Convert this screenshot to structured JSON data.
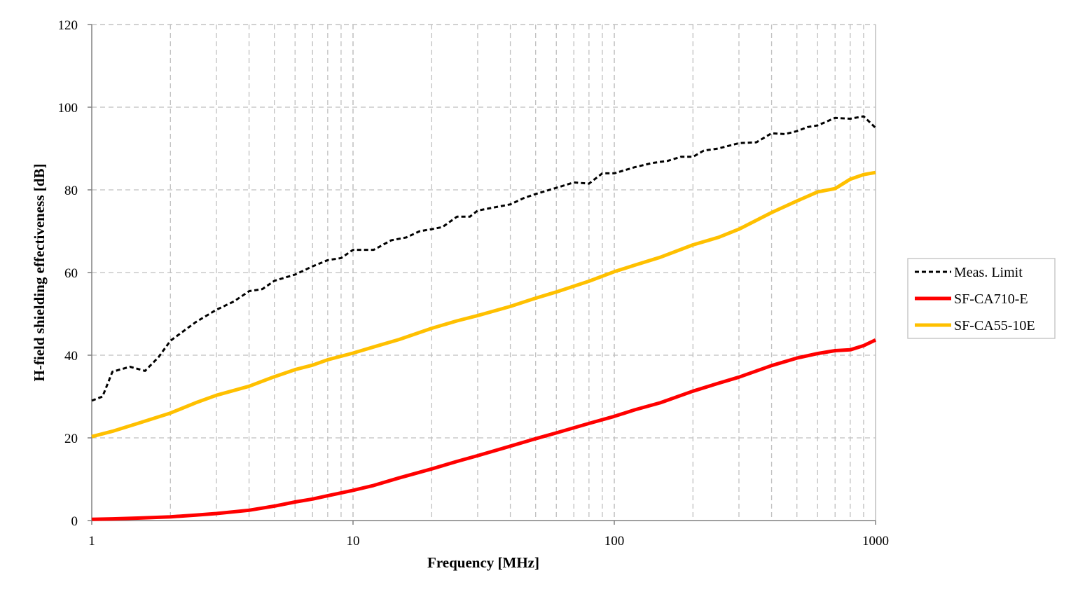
{
  "chart_data": {
    "type": "line",
    "x_scale": "log",
    "xlabel": "Frequency [MHz]",
    "ylabel": "H-field  shielding effectiveness [dB]",
    "xlim": [
      1,
      1000
    ],
    "ylim": [
      0,
      120
    ],
    "x_tick_labels": [
      "1",
      "10",
      "100",
      "1000"
    ],
    "y_tick_labels": [
      "0",
      "20",
      "40",
      "60",
      "80",
      "100",
      "120"
    ],
    "grid": true,
    "legend_position": "right",
    "series": [
      {
        "name": "Meas. Limit",
        "color": "#000000",
        "style": "dashed",
        "x": [
          1,
          1.1,
          1.2,
          1.4,
          1.6,
          1.8,
          2,
          2.5,
          3,
          3.5,
          4,
          4.5,
          5,
          6,
          7,
          8,
          9,
          10,
          12,
          14,
          16,
          18,
          20,
          22,
          25,
          28,
          30,
          35,
          40,
          45,
          50,
          60,
          70,
          80,
          90,
          100,
          120,
          140,
          160,
          180,
          200,
          220,
          250,
          300,
          350,
          400,
          450,
          500,
          550,
          600,
          700,
          800,
          900,
          1000
        ],
        "y": [
          29,
          30,
          36,
          37.2,
          36.2,
          39.5,
          43.5,
          48,
          51,
          53,
          55.5,
          56,
          58,
          59.5,
          61.5,
          63,
          63.5,
          65.5,
          65.5,
          67.8,
          68.5,
          70,
          70.5,
          71,
          73.5,
          73.5,
          75,
          75.8,
          76.5,
          78,
          79,
          80.5,
          81.8,
          81.5,
          84,
          84,
          85.5,
          86.5,
          87,
          88,
          88,
          89.5,
          90,
          91.3,
          91.5,
          93.7,
          93.5,
          94.2,
          95.2,
          95.6,
          97.4,
          97.2,
          97.8,
          95
        ]
      },
      {
        "name": "SF-CA710-E",
        "color": "#ff0000",
        "style": "solid",
        "x": [
          1,
          1.2,
          1.5,
          2,
          2.5,
          3,
          4,
          5,
          6,
          7,
          8,
          10,
          12,
          15,
          20,
          25,
          30,
          40,
          50,
          60,
          80,
          100,
          120,
          150,
          200,
          250,
          300,
          400,
          500,
          600,
          700,
          800,
          900,
          1000
        ],
        "y": [
          0.3,
          0.4,
          0.6,
          0.9,
          1.3,
          1.7,
          2.5,
          3.5,
          4.5,
          5.2,
          6,
          7.3,
          8.5,
          10.3,
          12.5,
          14.3,
          15.7,
          18,
          19.8,
          21.2,
          23.5,
          25.2,
          26.8,
          28.5,
          31.3,
          33.2,
          34.7,
          37.5,
          39.3,
          40.4,
          41.1,
          41.3,
          42.3,
          43.7
        ]
      },
      {
        "name": "SF-CA55-10E",
        "color": "#ffc000",
        "style": "solid",
        "x": [
          1,
          1.2,
          1.5,
          2,
          2.5,
          3,
          4,
          5,
          6,
          7,
          8,
          10,
          12,
          15,
          20,
          25,
          30,
          40,
          50,
          60,
          80,
          100,
          120,
          150,
          200,
          250,
          300,
          400,
          500,
          600,
          700,
          800,
          900,
          1000
        ],
        "y": [
          20.3,
          21.6,
          23.5,
          26,
          28.5,
          30.3,
          32.5,
          34.8,
          36.5,
          37.6,
          38.9,
          40.5,
          42,
          43.8,
          46.5,
          48.3,
          49.6,
          51.8,
          53.8,
          55.3,
          57.9,
          60.2,
          61.8,
          63.7,
          66.7,
          68.5,
          70.5,
          74.5,
          77.3,
          79.5,
          80.3,
          82.6,
          83.7,
          84.2
        ]
      }
    ]
  }
}
